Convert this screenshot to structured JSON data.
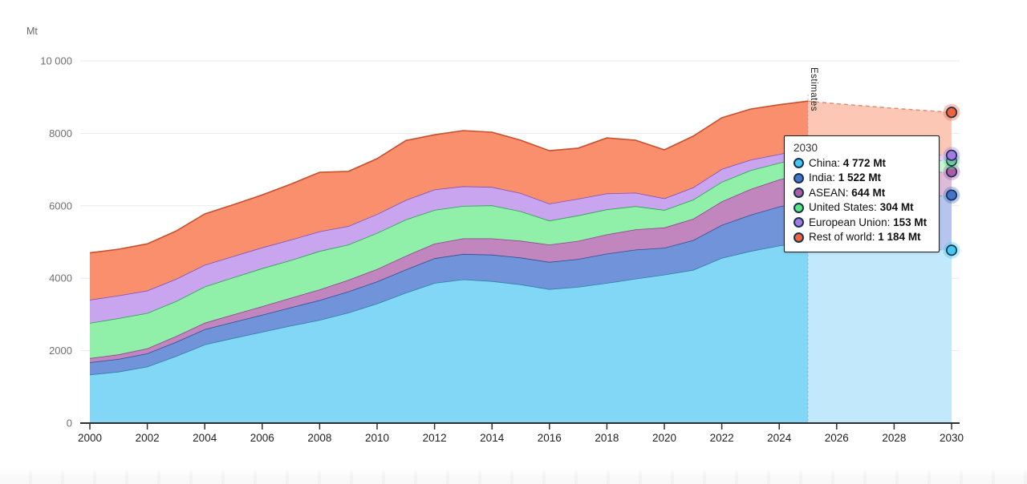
{
  "page": {
    "unit_label": "Mt",
    "estimates_label": "Estimates"
  },
  "tooltip": {
    "year": "2030",
    "rows": [
      {
        "label": "China:",
        "value": "4 772 Mt"
      },
      {
        "label": "India:",
        "value": "1 522 Mt"
      },
      {
        "label": "ASEAN:",
        "value": "644 Mt"
      },
      {
        "label": "United States:",
        "value": "304 Mt"
      },
      {
        "label": "European Union:",
        "value": "153 Mt"
      },
      {
        "label": "Rest of world:",
        "value": "1 184 Mt"
      }
    ]
  },
  "chart_data": {
    "type": "area",
    "stacked": true,
    "title": "",
    "xlabel": "",
    "ylabel": "Mt",
    "ylim": [
      0,
      10000
    ],
    "grid": true,
    "estimate_from": 2025,
    "estimate_label": "Estimates",
    "x": [
      2000,
      2001,
      2002,
      2003,
      2004,
      2005,
      2006,
      2007,
      2008,
      2009,
      2010,
      2011,
      2012,
      2013,
      2014,
      2015,
      2016,
      2017,
      2018,
      2019,
      2020,
      2021,
      2022,
      2023,
      2024,
      2025,
      2026,
      2027,
      2028,
      2029,
      2030
    ],
    "x_tick_labels": [
      "2000",
      "2002",
      "2004",
      "2006",
      "2008",
      "2010",
      "2012",
      "2014",
      "2016",
      "2018",
      "2020",
      "2022",
      "2024",
      "2026",
      "2028",
      "2030"
    ],
    "y_ticks": [
      {
        "value": 0,
        "label": "0"
      },
      {
        "value": 2000,
        "label": "2000"
      },
      {
        "value": 4000,
        "label": "4000"
      },
      {
        "value": 6000,
        "label": "6000"
      },
      {
        "value": 8000,
        "label": "8000"
      },
      {
        "value": 10000,
        "label": "10 000"
      }
    ],
    "series": [
      {
        "name": "China",
        "fill": "#82d7f7",
        "fill_estimate": "#c2e9fb",
        "stroke": "#2f7fa8",
        "dot": "#44c8f2",
        "values": [
          1340,
          1420,
          1560,
          1850,
          2170,
          2350,
          2520,
          2690,
          2850,
          3050,
          3300,
          3600,
          3870,
          3970,
          3920,
          3830,
          3700,
          3760,
          3870,
          3990,
          4100,
          4230,
          4560,
          4750,
          4900,
          5000,
          4955,
          4910,
          4865,
          4820,
          4772
        ]
      },
      {
        "name": "India",
        "fill": "#7193d9",
        "fill_estimate": "#b5c5ed",
        "stroke": "#2d4f90",
        "dot": "#4673c9",
        "values": [
          340,
          350,
          365,
          390,
          420,
          445,
          470,
          505,
          545,
          585,
          610,
          640,
          680,
          700,
          730,
          740,
          750,
          770,
          810,
          800,
          740,
          820,
          910,
          1000,
          1080,
          1140,
          1210,
          1285,
          1360,
          1440,
          1522
        ]
      },
      {
        "name": "ASEAN",
        "fill": "#c286bf",
        "fill_estimate": "#ddbcda",
        "stroke": "#8e4389",
        "dot": "#ad5ba5",
        "values": [
          115,
          125,
          140,
          160,
          180,
          205,
          235,
          265,
          295,
          320,
          345,
          380,
          405,
          430,
          450,
          465,
          480,
          500,
          530,
          560,
          560,
          590,
          650,
          710,
          745,
          765,
          740,
          715,
          690,
          667,
          644
        ]
      },
      {
        "name": "United States",
        "fill": "#90efa9",
        "fill_estimate": "#c9f7d4",
        "stroke": "#2f9e52",
        "dot": "#5be57d",
        "values": [
          970,
          1000,
          975,
          965,
          1000,
          1025,
          1050,
          1040,
          1060,
          975,
          995,
          1000,
          930,
          895,
          910,
          815,
          660,
          705,
          690,
          640,
          485,
          525,
          540,
          520,
          460,
          470,
          436,
          403,
          370,
          337,
          304
        ]
      },
      {
        "name": "European Union",
        "fill": "#c8a5ee",
        "fill_estimate": "#e3d2f6",
        "stroke": "#7e50b5",
        "dot": "#a578e3",
        "values": [
          640,
          630,
          620,
          615,
          600,
          585,
          575,
          565,
          545,
          510,
          520,
          540,
          565,
          545,
          510,
          500,
          470,
          460,
          440,
          370,
          320,
          340,
          355,
          290,
          240,
          230,
          214,
          199,
          183,
          168,
          153
        ]
      },
      {
        "name": "Rest of world",
        "fill": "#fa8f6e",
        "fill_estimate": "#fcc8b5",
        "stroke": "#c94f2b",
        "dot": "#f4603a",
        "values": [
          1295,
          1275,
          1290,
          1320,
          1405,
          1420,
          1450,
          1535,
          1630,
          1510,
          1530,
          1640,
          1510,
          1535,
          1510,
          1460,
          1460,
          1395,
          1535,
          1450,
          1340,
          1415,
          1415,
          1400,
          1365,
          1285,
          1264,
          1244,
          1224,
          1204,
          1184
        ]
      }
    ]
  }
}
